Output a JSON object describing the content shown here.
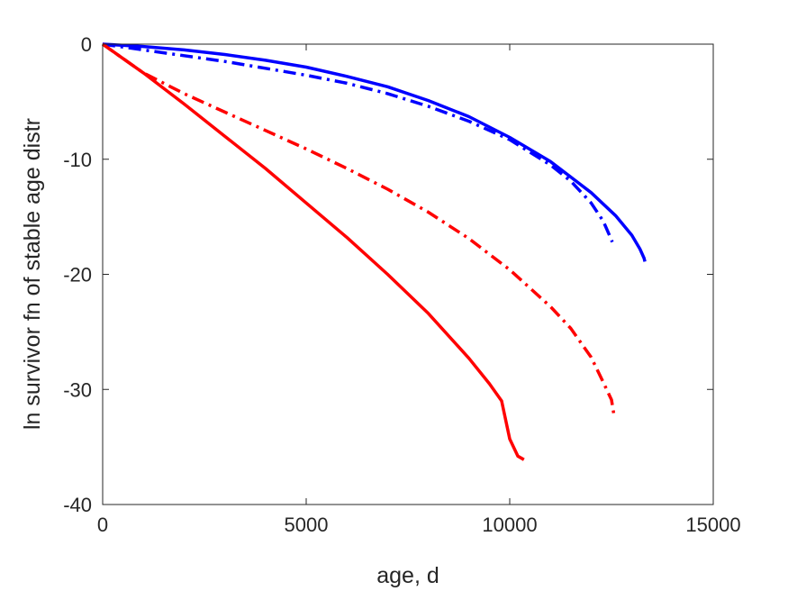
{
  "chart_data": {
    "type": "line",
    "title": "",
    "xlabel": "age, d",
    "ylabel": "ln survivor fn of stable age distr",
    "xlim": [
      0,
      15000
    ],
    "ylim": [
      -40,
      0
    ],
    "xticks": [
      0,
      5000,
      10000,
      15000
    ],
    "yticks": [
      -40,
      -30,
      -20,
      -10,
      0
    ],
    "xtick_labels": [
      "0",
      "5000",
      "10000",
      "15000"
    ],
    "ytick_labels": [
      "-40",
      "-30",
      "-20",
      "-10",
      "0"
    ],
    "grid": false,
    "legend": "none",
    "series": [
      {
        "color": "#0000ff",
        "line_style": "solid",
        "x": [
          0,
          1000,
          2000,
          3000,
          4000,
          5000,
          6000,
          7000,
          8000,
          9000,
          10000,
          11000,
          12000,
          12600,
          13000,
          13200,
          13300,
          13320
        ],
        "y": [
          0,
          -0.2,
          -0.5,
          -0.9,
          -1.4,
          -2.0,
          -2.8,
          -3.7,
          -4.9,
          -6.3,
          -8.1,
          -10.2,
          -12.9,
          -14.9,
          -16.6,
          -17.8,
          -18.6,
          -18.9
        ]
      },
      {
        "color": "#0000ff",
        "line_style": "dashdot",
        "x": [
          0,
          1000,
          2000,
          3000,
          4000,
          5000,
          6000,
          7000,
          8000,
          9000,
          10000,
          11000,
          11500,
          12000,
          12300,
          12450,
          12520
        ],
        "y": [
          0,
          -0.5,
          -1.0,
          -1.5,
          -2.1,
          -2.7,
          -3.4,
          -4.3,
          -5.4,
          -6.7,
          -8.3,
          -10.5,
          -11.9,
          -13.8,
          -15.4,
          -16.6,
          -17.2
        ]
      },
      {
        "color": "#ff0000",
        "line_style": "solid",
        "x": [
          0,
          1000,
          2000,
          3000,
          4000,
          5000,
          6000,
          7000,
          8000,
          9000,
          9500,
          9800,
          10000,
          10200,
          10350
        ],
        "y": [
          0,
          -2.5,
          -5.2,
          -8.0,
          -10.8,
          -13.8,
          -16.8,
          -20.0,
          -23.4,
          -27.3,
          -29.5,
          -31.0,
          -34.3,
          -35.8,
          -36.1
        ]
      },
      {
        "color": "#ff0000",
        "line_style": "dashdot",
        "x": [
          0,
          1000,
          2000,
          3000,
          4000,
          5000,
          6000,
          7000,
          8000,
          9000,
          10000,
          11000,
          11500,
          12000,
          12300,
          12500,
          12560
        ],
        "y": [
          0,
          -2.5,
          -4.3,
          -5.9,
          -7.5,
          -9.1,
          -10.8,
          -12.6,
          -14.6,
          -16.9,
          -19.6,
          -22.8,
          -24.7,
          -27.2,
          -29.4,
          -30.9,
          -32.2
        ]
      }
    ]
  }
}
